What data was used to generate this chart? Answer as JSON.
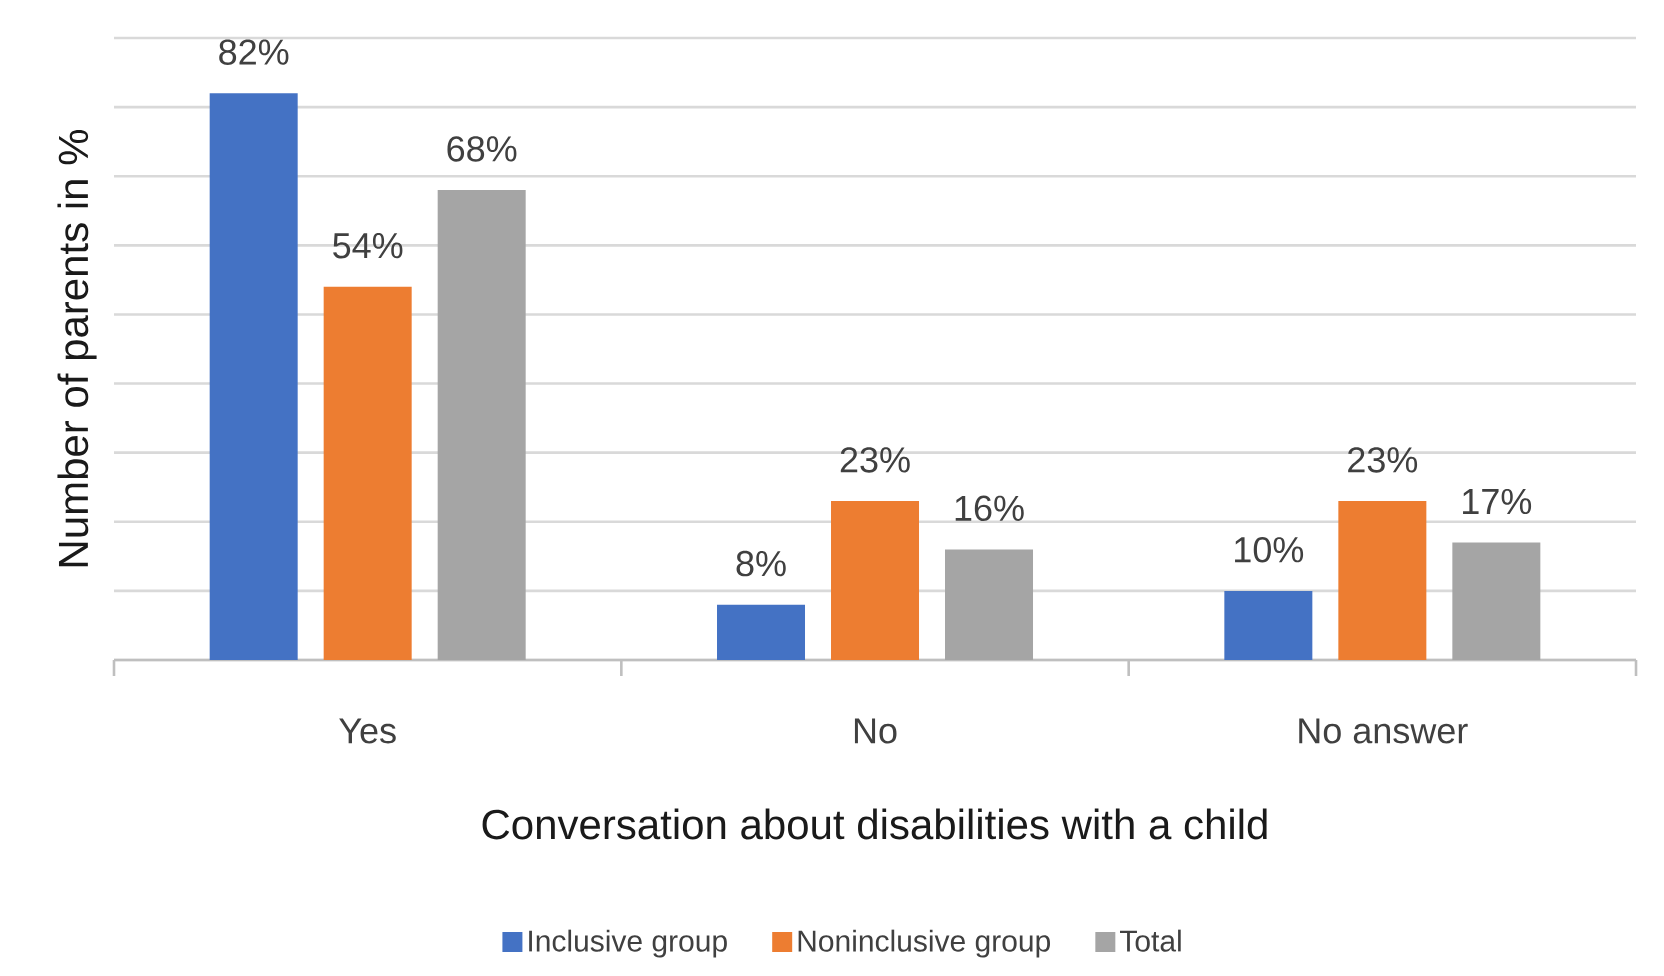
{
  "chart_data": {
    "type": "bar",
    "xlabel": "Conversation about disabilities with a child",
    "ylabel": "Number of parents in %",
    "categories": [
      "Yes",
      "No",
      "No answer"
    ],
    "series": [
      {
        "name": "Inclusive group",
        "color": "#4472c4",
        "values": [
          82,
          8,
          10
        ],
        "value_labels": [
          "82%",
          "8%",
          "10%"
        ]
      },
      {
        "name": "Noninclusive group",
        "color": "#ed7d31",
        "values": [
          54,
          23,
          23
        ],
        "value_labels": [
          "54%",
          "23%",
          "23%"
        ]
      },
      {
        "name": "Total",
        "color": "#a5a5a5",
        "values": [
          68,
          16,
          17
        ],
        "value_labels": [
          "68%",
          "16%",
          "17%"
        ]
      }
    ],
    "ylim": [
      0,
      90
    ],
    "yticks": [
      {
        "value": 0,
        "label": null
      },
      {
        "value": 10,
        "label": null
      },
      {
        "value": 20,
        "label": null
      },
      {
        "value": 30,
        "label": null
      },
      {
        "value": 40,
        "label": null
      },
      {
        "value": 50,
        "label": null
      },
      {
        "value": 60,
        "label": null
      },
      {
        "value": 70,
        "label": null
      },
      {
        "value": 80,
        "label": null
      },
      {
        "value": 90,
        "label": null
      }
    ],
    "grid": "y",
    "legend": "bottom",
    "tick_labels": "x"
  }
}
